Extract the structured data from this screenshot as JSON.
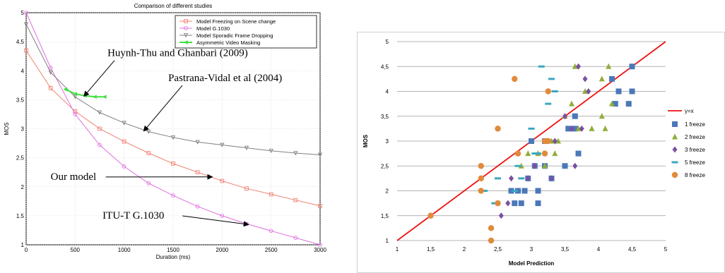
{
  "chart_data": [
    {
      "type": "line",
      "title": "Comparison of different studies",
      "xlabel": "Duration (ms)",
      "ylabel": "MOS",
      "xlim": [
        0,
        3000
      ],
      "ylim": [
        1,
        5
      ],
      "x_ticks": [
        "0",
        "500",
        "1000",
        "1500",
        "2000",
        "2500",
        "3000"
      ],
      "y_ticks": [
        "1",
        "1.5",
        "2",
        "2.5",
        "3",
        "3.5",
        "4",
        "4.5",
        "5"
      ],
      "grid": true,
      "legend_position": "top-right",
      "series": [
        {
          "name": "Model Freezing on Scene change",
          "color": "#f08070",
          "marker": "square",
          "x": [
            0,
            250,
            500,
            750,
            1000,
            1250,
            1500,
            1750,
            2000,
            2250,
            2500,
            2750,
            3000
          ],
          "y": [
            4.35,
            3.7,
            3.3,
            3.0,
            2.78,
            2.58,
            2.4,
            2.25,
            2.1,
            1.97,
            1.87,
            1.77,
            1.67
          ]
        },
        {
          "name": "Model G.1030",
          "color": "#e070e0",
          "marker": "circle",
          "x": [
            0,
            250,
            500,
            750,
            1000,
            1250,
            1500,
            1750,
            2000,
            2250,
            2500,
            2750,
            3000
          ],
          "y": [
            5.0,
            4.05,
            3.25,
            2.72,
            2.35,
            2.06,
            1.85,
            1.66,
            1.5,
            1.36,
            1.24,
            1.12,
            1.0
          ]
        },
        {
          "name": "Model Sporadic Frame Dropping",
          "color": "#808080",
          "marker": "triangle-down",
          "x": [
            0,
            250,
            500,
            750,
            1000,
            1250,
            1500,
            1750,
            2000,
            2250,
            2500,
            2750,
            3000
          ],
          "y": [
            4.8,
            3.97,
            3.55,
            3.28,
            3.1,
            2.95,
            2.85,
            2.77,
            2.72,
            2.67,
            2.62,
            2.58,
            2.55
          ]
        },
        {
          "name": "Asymmetric Video Masking",
          "color": "#40e040",
          "marker": "arrow",
          "x": [
            400,
            500,
            600,
            700,
            800
          ],
          "y": [
            3.68,
            3.6,
            3.57,
            3.55,
            3.55
          ]
        }
      ],
      "annotations": [
        {
          "text": "Huynh-Thu and Ghanbari (2009)",
          "x": 830,
          "y": 4.25,
          "target_x": 590,
          "target_y": 3.56
        },
        {
          "text": "Pastrana-Vidal et al (2004)",
          "x": 1450,
          "y": 3.82,
          "target_x": 1200,
          "target_y": 2.96
        },
        {
          "text": "Our model",
          "x": 250,
          "y": 2.12,
          "target_x": 1900,
          "target_y": 2.17
        },
        {
          "text": "ITU-T G.1030",
          "x": 780,
          "y": 1.45,
          "target_x": 2270,
          "target_y": 1.35
        }
      ]
    },
    {
      "type": "scatter",
      "title": "",
      "xlabel": "Model Prediction",
      "ylabel": "MOS",
      "xlim": [
        1,
        5
      ],
      "ylim": [
        1,
        5
      ],
      "x_ticks": [
        "1",
        "1,5",
        "2",
        "2,5",
        "3",
        "3,5",
        "4",
        "4,5",
        "5"
      ],
      "y_ticks": [
        "1",
        "1,5",
        "2",
        "2,5",
        "3",
        "3,5",
        "4",
        "4,5",
        "5"
      ],
      "grid": true,
      "legend_position": "right",
      "reference_line": {
        "name": "y=x",
        "color": "#ee1111"
      },
      "series": [
        {
          "name": "1 freeze",
          "color": "#4a78b8",
          "marker": "square",
          "points": [
            [
              2.7,
              2
            ],
            [
              2.75,
              1.75
            ],
            [
              2.8,
              2
            ],
            [
              2.85,
              1.75
            ],
            [
              2.9,
              2
            ],
            [
              2.95,
              2.25
            ],
            [
              3.0,
              3
            ],
            [
              3.05,
              2.5
            ],
            [
              3.1,
              2
            ],
            [
              3.1,
              1.75
            ],
            [
              3.2,
              2.5
            ],
            [
              3.2,
              3
            ],
            [
              3.3,
              2.25
            ],
            [
              3.5,
              2.5
            ],
            [
              3.55,
              3.25
            ],
            [
              3.65,
              3.25
            ],
            [
              3.65,
              3.5
            ],
            [
              3.7,
              2.75
            ],
            [
              4.2,
              4.25
            ],
            [
              4.25,
              3.75
            ],
            [
              4.3,
              4
            ],
            [
              4.45,
              3.75
            ],
            [
              4.5,
              4
            ],
            [
              4.5,
              4.5
            ]
          ]
        },
        {
          "name": "2 freeze",
          "color": "#8fae3a",
          "marker": "triangle",
          "points": [
            [
              2.85,
              2.5
            ],
            [
              2.95,
              2.75
            ],
            [
              3.1,
              2.75
            ],
            [
              3.2,
              2.5
            ],
            [
              3.3,
              3
            ],
            [
              3.35,
              2.75
            ],
            [
              3.4,
              3
            ],
            [
              3.5,
              3.5
            ],
            [
              3.6,
              3.75
            ],
            [
              3.65,
              4.5
            ],
            [
              3.7,
              3.25
            ],
            [
              3.8,
              4
            ],
            [
              3.9,
              3.25
            ],
            [
              4.05,
              3.5
            ],
            [
              4.05,
              4.25
            ],
            [
              4.1,
              3.25
            ],
            [
              4.15,
              4.5
            ],
            [
              4.2,
              3.75
            ]
          ]
        },
        {
          "name": "3 freeze",
          "color": "#7b4fa0",
          "marker": "diamond",
          "points": [
            [
              2.55,
              1.5
            ],
            [
              2.65,
              1.75
            ],
            [
              2.7,
              2.25
            ],
            [
              2.95,
              2.25
            ],
            [
              3.05,
              2.5
            ],
            [
              3.3,
              2.25
            ],
            [
              3.35,
              3
            ],
            [
              3.5,
              3.5
            ],
            [
              3.6,
              3.25
            ],
            [
              3.65,
              2.5
            ],
            [
              3.7,
              4.5
            ],
            [
              3.75,
              3.25
            ],
            [
              3.8,
              4.25
            ],
            [
              3.85,
              4
            ]
          ]
        },
        {
          "name": "5 freeze",
          "color": "#3aa7c2",
          "marker": "dash",
          "points": [
            [
              2.3,
              2
            ],
            [
              2.45,
              1.75
            ],
            [
              2.5,
              2.25
            ],
            [
              2.75,
              2
            ],
            [
              2.8,
              2.5
            ],
            [
              2.85,
              2.25
            ],
            [
              3.0,
              3.25
            ],
            [
              3.05,
              2.75
            ],
            [
              3.1,
              2.75
            ],
            [
              3.15,
              4.5
            ],
            [
              3.25,
              3.75
            ],
            [
              3.3,
              4.25
            ],
            [
              3.35,
              4
            ]
          ]
        },
        {
          "name": "8 freeze",
          "color": "#e08a3a",
          "marker": "circle",
          "points": [
            [
              1.5,
              1.5
            ],
            [
              2.25,
              2
            ],
            [
              2.25,
              2.25
            ],
            [
              2.25,
              2.5
            ],
            [
              2.4,
              1.25
            ],
            [
              2.4,
              1
            ],
            [
              2.5,
              1.75
            ],
            [
              2.5,
              3.25
            ],
            [
              2.75,
              4.25
            ],
            [
              2.8,
              2.75
            ],
            [
              3.2,
              3
            ],
            [
              3.2,
              2.75
            ],
            [
              3.25,
              4
            ],
            [
              3.25,
              3
            ]
          ]
        }
      ]
    }
  ]
}
